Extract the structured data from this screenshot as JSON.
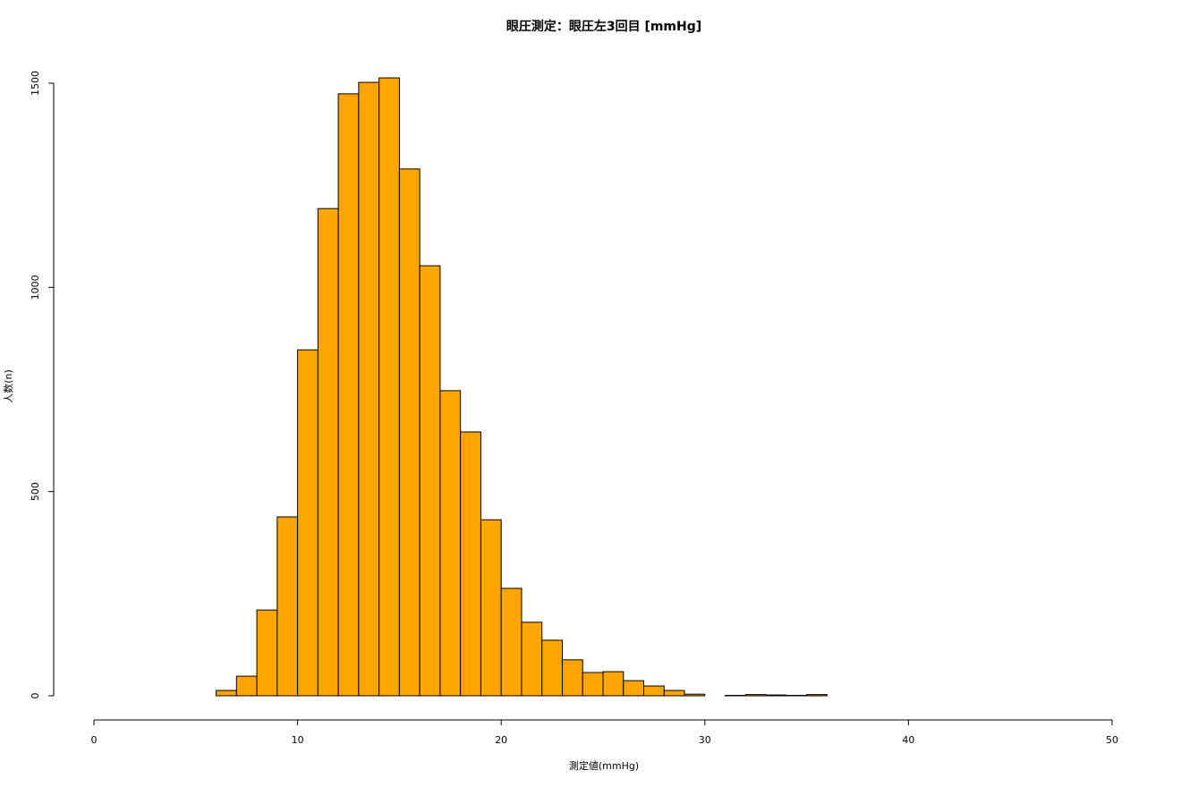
{
  "chart_data": {
    "type": "histogram",
    "title": "眼圧測定：眼圧左3回目 [mmHg]",
    "xlabel": "測定値(mmHg)",
    "ylabel": "人数(n)",
    "bins": [
      6,
      7,
      8,
      9,
      10,
      11,
      12,
      13,
      14,
      15,
      16,
      17,
      18,
      19,
      20,
      21,
      22,
      23,
      24,
      25,
      26,
      27,
      28,
      29,
      30,
      31,
      32,
      33,
      34,
      35,
      36
    ],
    "counts": [
      13,
      48,
      210,
      438,
      847,
      1193,
      1474,
      1502,
      1513,
      1290,
      1053,
      747,
      646,
      431,
      263,
      180,
      136,
      88,
      57,
      59,
      37,
      24,
      13,
      4,
      0,
      1,
      3,
      2,
      1,
      3
    ],
    "color": "#ffa500",
    "xlim": [
      0,
      50
    ],
    "xticks": [
      0,
      10,
      20,
      30,
      40,
      50
    ],
    "ylim": [
      0,
      1500
    ],
    "yticks": [
      0,
      500,
      1000,
      1500
    ]
  }
}
